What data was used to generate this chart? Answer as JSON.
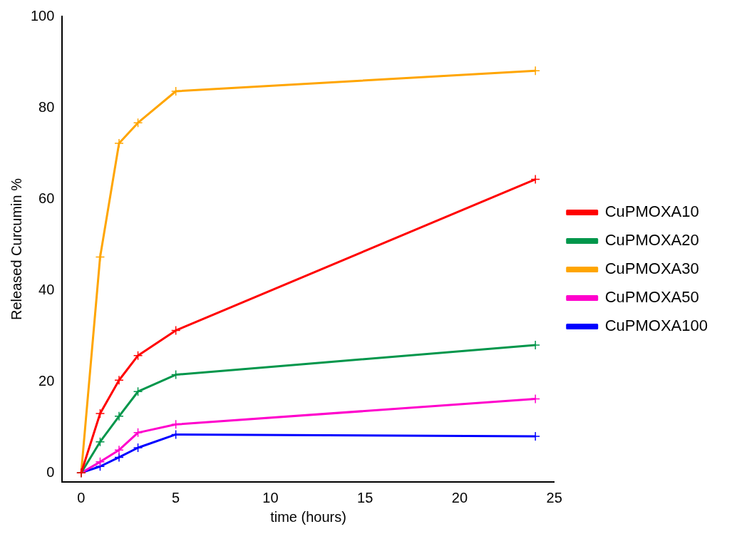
{
  "chart_data": {
    "type": "line",
    "xlabel": "time (hours)",
    "ylabel": "Released Curcumin %",
    "x": [
      0,
      1,
      2,
      3,
      5,
      24
    ],
    "series": [
      {
        "name": "CuPMOXA10",
        "color": "#ff0000",
        "values": [
          0,
          13.0,
          20.3,
          25.7,
          31.2,
          64.3
        ]
      },
      {
        "name": "CuPMOXA20",
        "color": "#00964b",
        "values": [
          0,
          6.8,
          12.4,
          17.8,
          21.5,
          28.0
        ]
      },
      {
        "name": "CuPMOXA30",
        "color": "#ffa500",
        "values": [
          0,
          47.3,
          72.2,
          76.7,
          83.6,
          88.1
        ]
      },
      {
        "name": "CuPMOXA50",
        "color": "#ff00cc",
        "values": [
          0,
          2.4,
          5.0,
          8.8,
          10.6,
          16.2
        ]
      },
      {
        "name": "CuPMOXA100",
        "color": "#0000ff",
        "values": [
          0,
          1.4,
          3.4,
          5.5,
          8.4,
          8.0
        ]
      }
    ],
    "xlim": [
      -1,
      25
    ],
    "xticks": [
      0,
      5,
      10,
      15,
      20,
      25
    ],
    "ylim": [
      -2,
      100
    ],
    "yticks": [
      0,
      20,
      40,
      60,
      80,
      100
    ],
    "grid": false,
    "legend": "right",
    "marker": "cross",
    "line_style": "solid"
  }
}
